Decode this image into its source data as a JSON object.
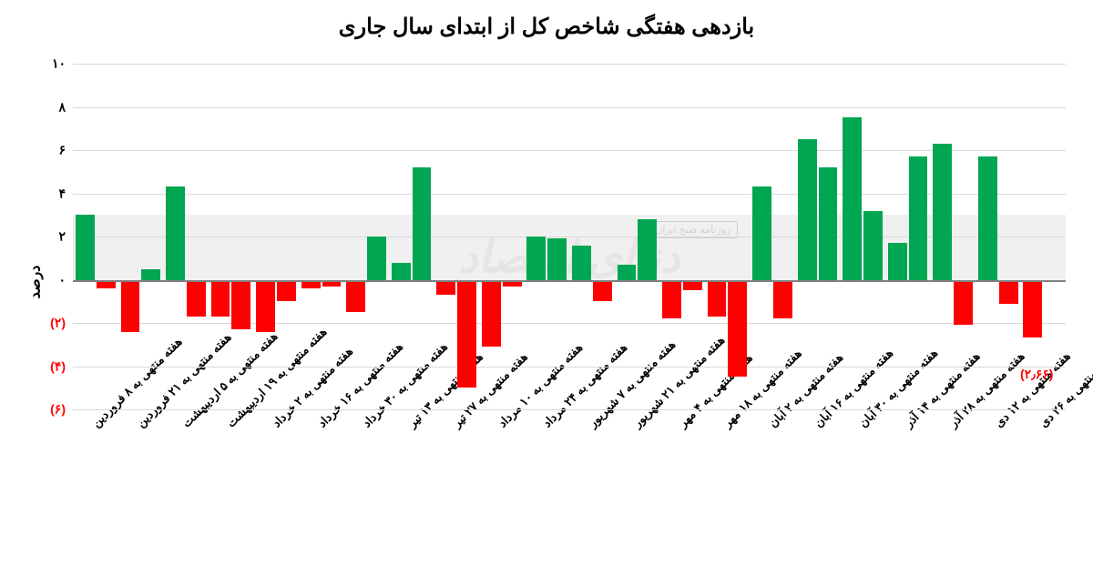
{
  "chart": {
    "type": "bar",
    "title": "بازدهی هفتگی شاخص کل از ابتدای سال جاری",
    "title_fontsize": 24,
    "y_axis_title": "درصد",
    "background_color": "#ffffff",
    "grid_color": "#d9d9d9",
    "baseline_color": "#808080",
    "positive_color": "#00a651",
    "negative_color": "#ff0000",
    "ylim_min": -6,
    "ylim_max": 10,
    "y_ticks": [
      {
        "v": 10,
        "label": "۱۰",
        "neg": false
      },
      {
        "v": 8,
        "label": "۸",
        "neg": false
      },
      {
        "v": 6,
        "label": "۶",
        "neg": false
      },
      {
        "v": 4,
        "label": "۴",
        "neg": false
      },
      {
        "v": 2,
        "label": "۲",
        "neg": false
      },
      {
        "v": 0,
        "label": "۰",
        "neg": false
      },
      {
        "v": -2,
        "label": "(۲)",
        "neg": true
      },
      {
        "v": -4,
        "label": "(۴)",
        "neg": true
      },
      {
        "v": -6,
        "label": "(۶)",
        "neg": true
      }
    ],
    "watermark_main": "دنیای اقتصاد",
    "watermark_small": "روزنامه صبح ایران",
    "callout": {
      "label": "(۲٫۶۶)",
      "value": -2.66
    },
    "categories": [
      {
        "label": "هفته منتهی به ۸ فروردین",
        "a": 3.0,
        "b": -0.4
      },
      {
        "label": "هفته منتهی به ۲۱ فروردین",
        "a": -2.4,
        "b": 0.5
      },
      {
        "label": "هفته منتهی به ۵ اردیبهشت",
        "a": 4.3,
        "b": -1.7
      },
      {
        "label": "هفته منتهی به ۱۹ اردیبهشت",
        "a": -1.7,
        "b": -2.3
      },
      {
        "label": "هفته منتهی به ۲ خرداد",
        "a": -2.4,
        "b": -1.0
      },
      {
        "label": "هفته منتهی به ۱۶ خرداد",
        "a": -0.4,
        "b": -0.3
      },
      {
        "label": "هفته منتهی به ۳۰ خرداد",
        "a": -1.5,
        "b": 2.0
      },
      {
        "label": "هفته منتهی به ۱۳ تیر",
        "a": 0.8,
        "b": 5.2
      },
      {
        "label": "هفته منتهی به ۲۷ تیر",
        "a": -0.7,
        "b": -5.0
      },
      {
        "label": "هفته منتهی به ۱۰ مرداد",
        "a": -3.1,
        "b": -0.3
      },
      {
        "label": "هفته منتهی به ۲۴ مرداد",
        "a": 2.0,
        "b": 1.9
      },
      {
        "label": "هفته منتهی به ۷ شهریور",
        "a": 1.6,
        "b": -1.0
      },
      {
        "label": "هفته منتهی به ۲۱ شهریور",
        "a": 0.7,
        "b": 2.8
      },
      {
        "label": "هفته منتهی به ۴ مهر",
        "a": -1.8,
        "b": -0.5
      },
      {
        "label": "هفته منتهی به ۱۸ مهر",
        "a": -1.7,
        "b": -4.5
      },
      {
        "label": "هفته منتهی به ۲ آبان",
        "a": 4.3,
        "b": -1.8
      },
      {
        "label": "هفته منتهی به ۱۶ آبان",
        "a": 6.5,
        "b": 5.2
      },
      {
        "label": "هفته منتهی به ۳۰ آبان",
        "a": 7.5,
        "b": 3.2
      },
      {
        "label": "هفته منتهی به ۱۴ آذر",
        "a": 1.7,
        "b": 5.7
      },
      {
        "label": "هفته منتهی به ۲۸ آذر",
        "a": 6.3,
        "b": -2.1
      },
      {
        "label": "هفته منتهی به ۱۲ دی",
        "a": 5.7,
        "b": -1.1
      },
      {
        "label": "هفته منتهی به ۲۶ دی",
        "a": -2.66,
        "b": null
      }
    ]
  }
}
